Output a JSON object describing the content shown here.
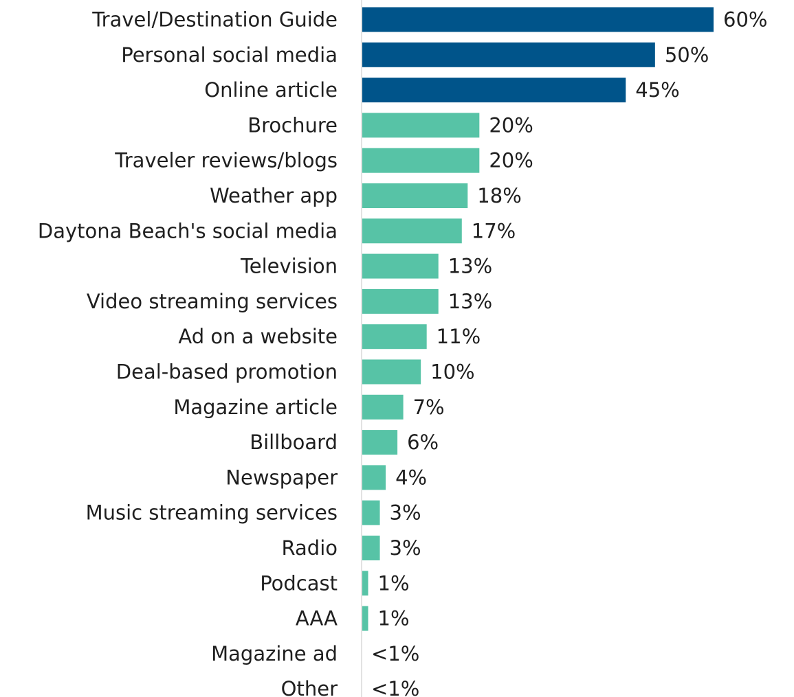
{
  "chart_data": {
    "type": "bar",
    "orientation": "horizontal",
    "categories": [
      "Travel/Destination Guide",
      "Personal social media",
      "Online article",
      "Brochure",
      "Traveler reviews/blogs",
      "Weather app",
      "Daytona Beach's social media",
      "Television",
      "Video streaming services",
      "Ad on a website",
      "Deal-based promotion",
      "Magazine article",
      "Billboard",
      "Newspaper",
      "Music streaming services",
      "Radio",
      "Podcast",
      "AAA",
      "Magazine ad",
      "Other"
    ],
    "values": [
      60,
      50,
      45,
      20,
      20,
      18,
      17,
      13,
      13,
      11,
      10,
      7,
      6,
      4,
      3,
      3,
      1,
      1,
      0.3,
      0.3
    ],
    "value_labels": [
      "60%",
      "50%",
      "45%",
      "20%",
      "20%",
      "18%",
      "17%",
      "13%",
      "13%",
      "11%",
      "10%",
      "7%",
      "6%",
      "4%",
      "3%",
      "3%",
      "1%",
      "1%",
      "<1%",
      "<1%"
    ],
    "highlighted": [
      true,
      true,
      true,
      false,
      false,
      false,
      false,
      false,
      false,
      false,
      false,
      false,
      false,
      false,
      false,
      false,
      false,
      false,
      false,
      false
    ],
    "colors": {
      "highlight": "#00548a",
      "default": "#57c3a6",
      "axis": "#d9d9d9",
      "text": "#1f1f1f"
    },
    "xlim": [
      0,
      60
    ],
    "grid": false,
    "legend": "none",
    "title": "",
    "xlabel": "",
    "ylabel": ""
  }
}
